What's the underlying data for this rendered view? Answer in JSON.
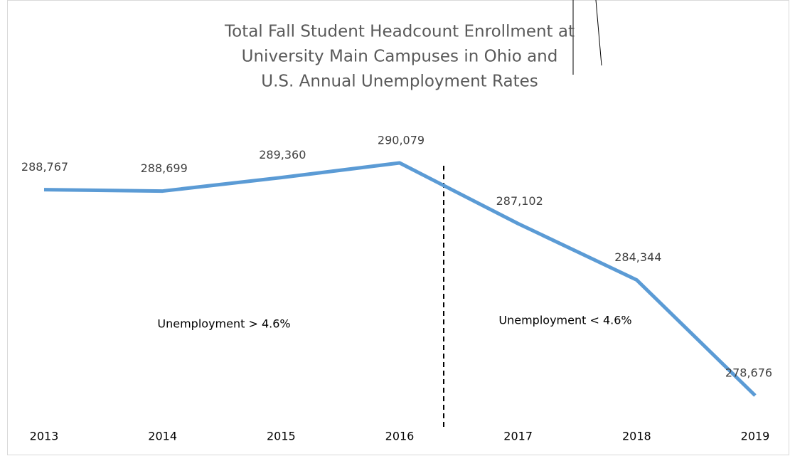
{
  "chart_data": {
    "type": "line",
    "title": [
      "Total Fall Student Headcount Enrollment at",
      "University Main Campuses in Ohio and",
      "U.S. Annual Unemployment Rates"
    ],
    "categories": [
      "2013",
      "2014",
      "2015",
      "2016",
      "2017",
      "2018",
      "2019"
    ],
    "series": [
      {
        "name": "Total Fall Student Headcount Enrollment",
        "color": "#5b9bd5",
        "values": [
          288767,
          288699,
          289360,
          290079,
          287102,
          284344,
          278676
        ],
        "value_labels": [
          "288,767",
          "288,699",
          "289,360",
          "290,079",
          "287,102",
          "284,344",
          "278,676"
        ]
      }
    ],
    "annotations": [
      "Unemployment > 4.6%",
      "Unemployment < 4.6%"
    ]
  }
}
